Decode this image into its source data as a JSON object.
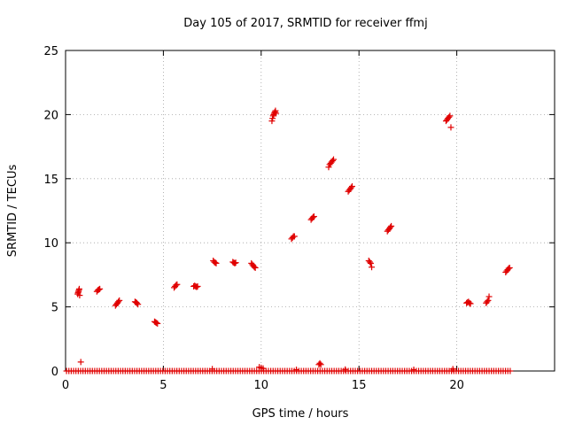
{
  "chart_data": {
    "type": "scatter",
    "title": "Day 105 of 2017, SRMTID for receiver ffmj",
    "xlabel": "GPS time / hours",
    "ylabel": "SRMTID / TECUs",
    "xlim": [
      0,
      25
    ],
    "ylim": [
      0,
      25
    ],
    "xticks": [
      0,
      5,
      10,
      15,
      20
    ],
    "yticks": [
      0,
      5,
      10,
      15,
      20,
      25
    ],
    "grid": true,
    "marker": "+",
    "color": "#e00000",
    "series": [
      {
        "name": "SRMTID",
        "points": [
          [
            0.62,
            6.0
          ],
          [
            0.64,
            6.1
          ],
          [
            0.66,
            6.2
          ],
          [
            0.68,
            6.3
          ],
          [
            0.7,
            6.4
          ],
          [
            0.72,
            5.9
          ],
          [
            0.78,
            0.7
          ],
          [
            1.6,
            6.2
          ],
          [
            1.65,
            6.3
          ],
          [
            1.7,
            6.35
          ],
          [
            1.75,
            6.4
          ],
          [
            2.55,
            5.1
          ],
          [
            2.6,
            5.2
          ],
          [
            2.65,
            5.3
          ],
          [
            2.7,
            5.4
          ],
          [
            2.75,
            5.5
          ],
          [
            3.55,
            5.4
          ],
          [
            3.6,
            5.35
          ],
          [
            3.65,
            5.3
          ],
          [
            3.7,
            5.2
          ],
          [
            4.55,
            3.85
          ],
          [
            4.6,
            3.8
          ],
          [
            4.65,
            3.75
          ],
          [
            4.7,
            3.7
          ],
          [
            5.55,
            6.5
          ],
          [
            5.6,
            6.6
          ],
          [
            5.65,
            6.7
          ],
          [
            5.7,
            6.75
          ],
          [
            6.55,
            6.6
          ],
          [
            6.6,
            6.65
          ],
          [
            6.65,
            6.6
          ],
          [
            6.7,
            6.55
          ],
          [
            6.75,
            6.6
          ],
          [
            7.55,
            8.6
          ],
          [
            7.6,
            8.5
          ],
          [
            7.65,
            8.45
          ],
          [
            7.7,
            8.4
          ],
          [
            8.55,
            8.5
          ],
          [
            8.6,
            8.45
          ],
          [
            8.65,
            8.4
          ],
          [
            8.7,
            8.45
          ],
          [
            9.5,
            8.4
          ],
          [
            9.55,
            8.3
          ],
          [
            9.6,
            8.2
          ],
          [
            9.65,
            8.1
          ],
          [
            9.7,
            8.05
          ],
          [
            10.55,
            19.5
          ],
          [
            10.58,
            19.7
          ],
          [
            10.61,
            19.9
          ],
          [
            10.64,
            20.0
          ],
          [
            10.67,
            20.1
          ],
          [
            10.7,
            20.2
          ],
          [
            10.73,
            20.3
          ],
          [
            10.76,
            20.1
          ],
          [
            11.55,
            10.3
          ],
          [
            11.6,
            10.4
          ],
          [
            11.65,
            10.5
          ],
          [
            11.7,
            10.5
          ],
          [
            12.55,
            11.8
          ],
          [
            12.6,
            11.9
          ],
          [
            12.65,
            12.0
          ],
          [
            12.7,
            12.05
          ],
          [
            12.95,
            0.5
          ],
          [
            13.0,
            0.6
          ],
          [
            13.05,
            0.5
          ],
          [
            13.45,
            15.9
          ],
          [
            13.5,
            16.1
          ],
          [
            13.55,
            16.2
          ],
          [
            13.6,
            16.3
          ],
          [
            13.65,
            16.4
          ],
          [
            13.7,
            16.5
          ],
          [
            14.45,
            14.0
          ],
          [
            14.5,
            14.1
          ],
          [
            14.55,
            14.2
          ],
          [
            14.6,
            14.3
          ],
          [
            14.65,
            14.4
          ],
          [
            15.5,
            8.6
          ],
          [
            15.55,
            8.5
          ],
          [
            15.6,
            8.4
          ],
          [
            15.65,
            8.1
          ],
          [
            16.45,
            10.9
          ],
          [
            16.5,
            11.0
          ],
          [
            16.55,
            11.1
          ],
          [
            16.6,
            11.2
          ],
          [
            16.65,
            11.3
          ],
          [
            19.45,
            19.5
          ],
          [
            19.5,
            19.6
          ],
          [
            19.55,
            19.7
          ],
          [
            19.6,
            19.8
          ],
          [
            19.65,
            19.9
          ],
          [
            19.7,
            19.0
          ],
          [
            20.5,
            5.3
          ],
          [
            20.55,
            5.35
          ],
          [
            20.6,
            5.4
          ],
          [
            20.65,
            5.3
          ],
          [
            20.7,
            5.25
          ],
          [
            21.5,
            5.3
          ],
          [
            21.55,
            5.4
          ],
          [
            21.6,
            5.5
          ],
          [
            21.65,
            5.8
          ],
          [
            22.5,
            7.7
          ],
          [
            22.55,
            7.8
          ],
          [
            22.6,
            7.9
          ],
          [
            22.65,
            8.0
          ],
          [
            22.7,
            8.05
          ],
          [
            9.9,
            0.3
          ],
          [
            10.0,
            0.25
          ],
          [
            10.1,
            0.2
          ],
          [
            7.5,
            0.15
          ],
          [
            11.8,
            0.1
          ],
          [
            14.3,
            0.12
          ],
          [
            17.8,
            0.1
          ],
          [
            19.8,
            0.15
          ]
        ]
      }
    ],
    "baseline": {
      "segments": [
        [
          0.05,
          22.8
        ]
      ],
      "y": 0.0,
      "step": 0.12
    }
  }
}
